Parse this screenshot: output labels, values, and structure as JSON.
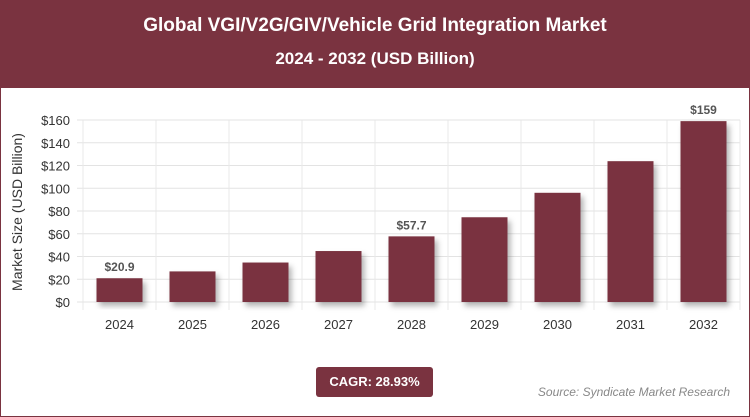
{
  "header": {
    "title": "Global VGI/V2G/GIV/Vehicle Grid Integration Market",
    "subtitle": "2024 - 2032 (USD Billion)"
  },
  "footer": {
    "cagr": "CAGR: 28.93%",
    "source": "Source: Syndicate Market Research"
  },
  "colors": {
    "brand": "#7a3340",
    "bar": "#7a3340"
  },
  "chart_data": {
    "type": "bar",
    "categories": [
      "2024",
      "2025",
      "2026",
      "2027",
      "2028",
      "2029",
      "2030",
      "2031",
      "2032"
    ],
    "values": [
      20.9,
      26.9,
      34.7,
      44.8,
      57.7,
      74.5,
      96.0,
      123.8,
      159
    ],
    "data_labels": {
      "0": "$20.9",
      "4": "$57.7",
      "8": "$159"
    },
    "ylabel": "Market Size (USD Billion)",
    "ylim": [
      0,
      160
    ],
    "yticks": [
      0,
      20,
      40,
      60,
      80,
      100,
      120,
      140,
      160
    ],
    "ytick_labels": [
      "$0",
      "$20",
      "$40",
      "$60",
      "$80",
      "$100",
      "$120",
      "$140",
      "$160"
    ],
    "grid": true
  }
}
